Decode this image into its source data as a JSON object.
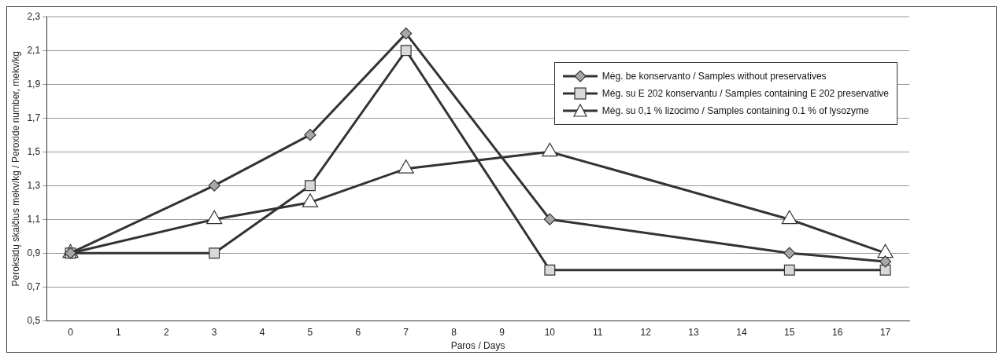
{
  "chart_data": {
    "type": "line",
    "xlabel": "Paros / Days",
    "ylabel": "Peroksidų skaičius mekv/kg / Peroxide number, mekv/kg",
    "xlim": [
      -0.5,
      17.5
    ],
    "xticks": [
      0,
      1,
      2,
      3,
      4,
      5,
      6,
      7,
      8,
      9,
      10,
      11,
      12,
      13,
      14,
      15,
      16,
      17
    ],
    "ylim": [
      0.5,
      2.3
    ],
    "yticks": [
      {
        "value": 0.5,
        "label": "0,5"
      },
      {
        "value": 0.7,
        "label": "0,7"
      },
      {
        "value": 0.9,
        "label": "0,9"
      },
      {
        "value": 1.1,
        "label": "1,1"
      },
      {
        "value": 1.3,
        "label": "1,3"
      },
      {
        "value": 1.5,
        "label": "1,5"
      },
      {
        "value": 1.7,
        "label": "1,7"
      },
      {
        "value": 1.9,
        "label": "1,9"
      },
      {
        "value": 2.1,
        "label": "2,1"
      },
      {
        "value": 2.3,
        "label": "2,3"
      }
    ],
    "grid": "y",
    "legend": "top right",
    "series": [
      {
        "name": "Mėg. be konservanto / Samples without preservatives",
        "color": "#a6a6a6",
        "marker": "diamond",
        "x": [
          0,
          3,
          5,
          7,
          10,
          15,
          17
        ],
        "values": [
          0.9,
          1.3,
          1.6,
          2.2,
          1.1,
          0.9,
          0.85
        ]
      },
      {
        "name": "Mėg. su E 202 konservantu / Samples containing E 202 preservative",
        "color": "#d9d9d9",
        "marker": "square",
        "x": [
          0,
          3,
          5,
          7,
          10,
          15,
          17
        ],
        "values": [
          0.9,
          0.9,
          1.3,
          2.1,
          0.8,
          0.8,
          0.8
        ]
      },
      {
        "name": "Mėg. su 0,1 % lizocimo / Samples containing 0.1 % of lysozyme",
        "color": "#ffffff",
        "marker": "triangle",
        "x": [
          0,
          3,
          5,
          7,
          10,
          15,
          17
        ],
        "values": [
          0.9,
          1.1,
          1.2,
          1.4,
          1.5,
          1.1,
          0.9
        ]
      }
    ]
  }
}
